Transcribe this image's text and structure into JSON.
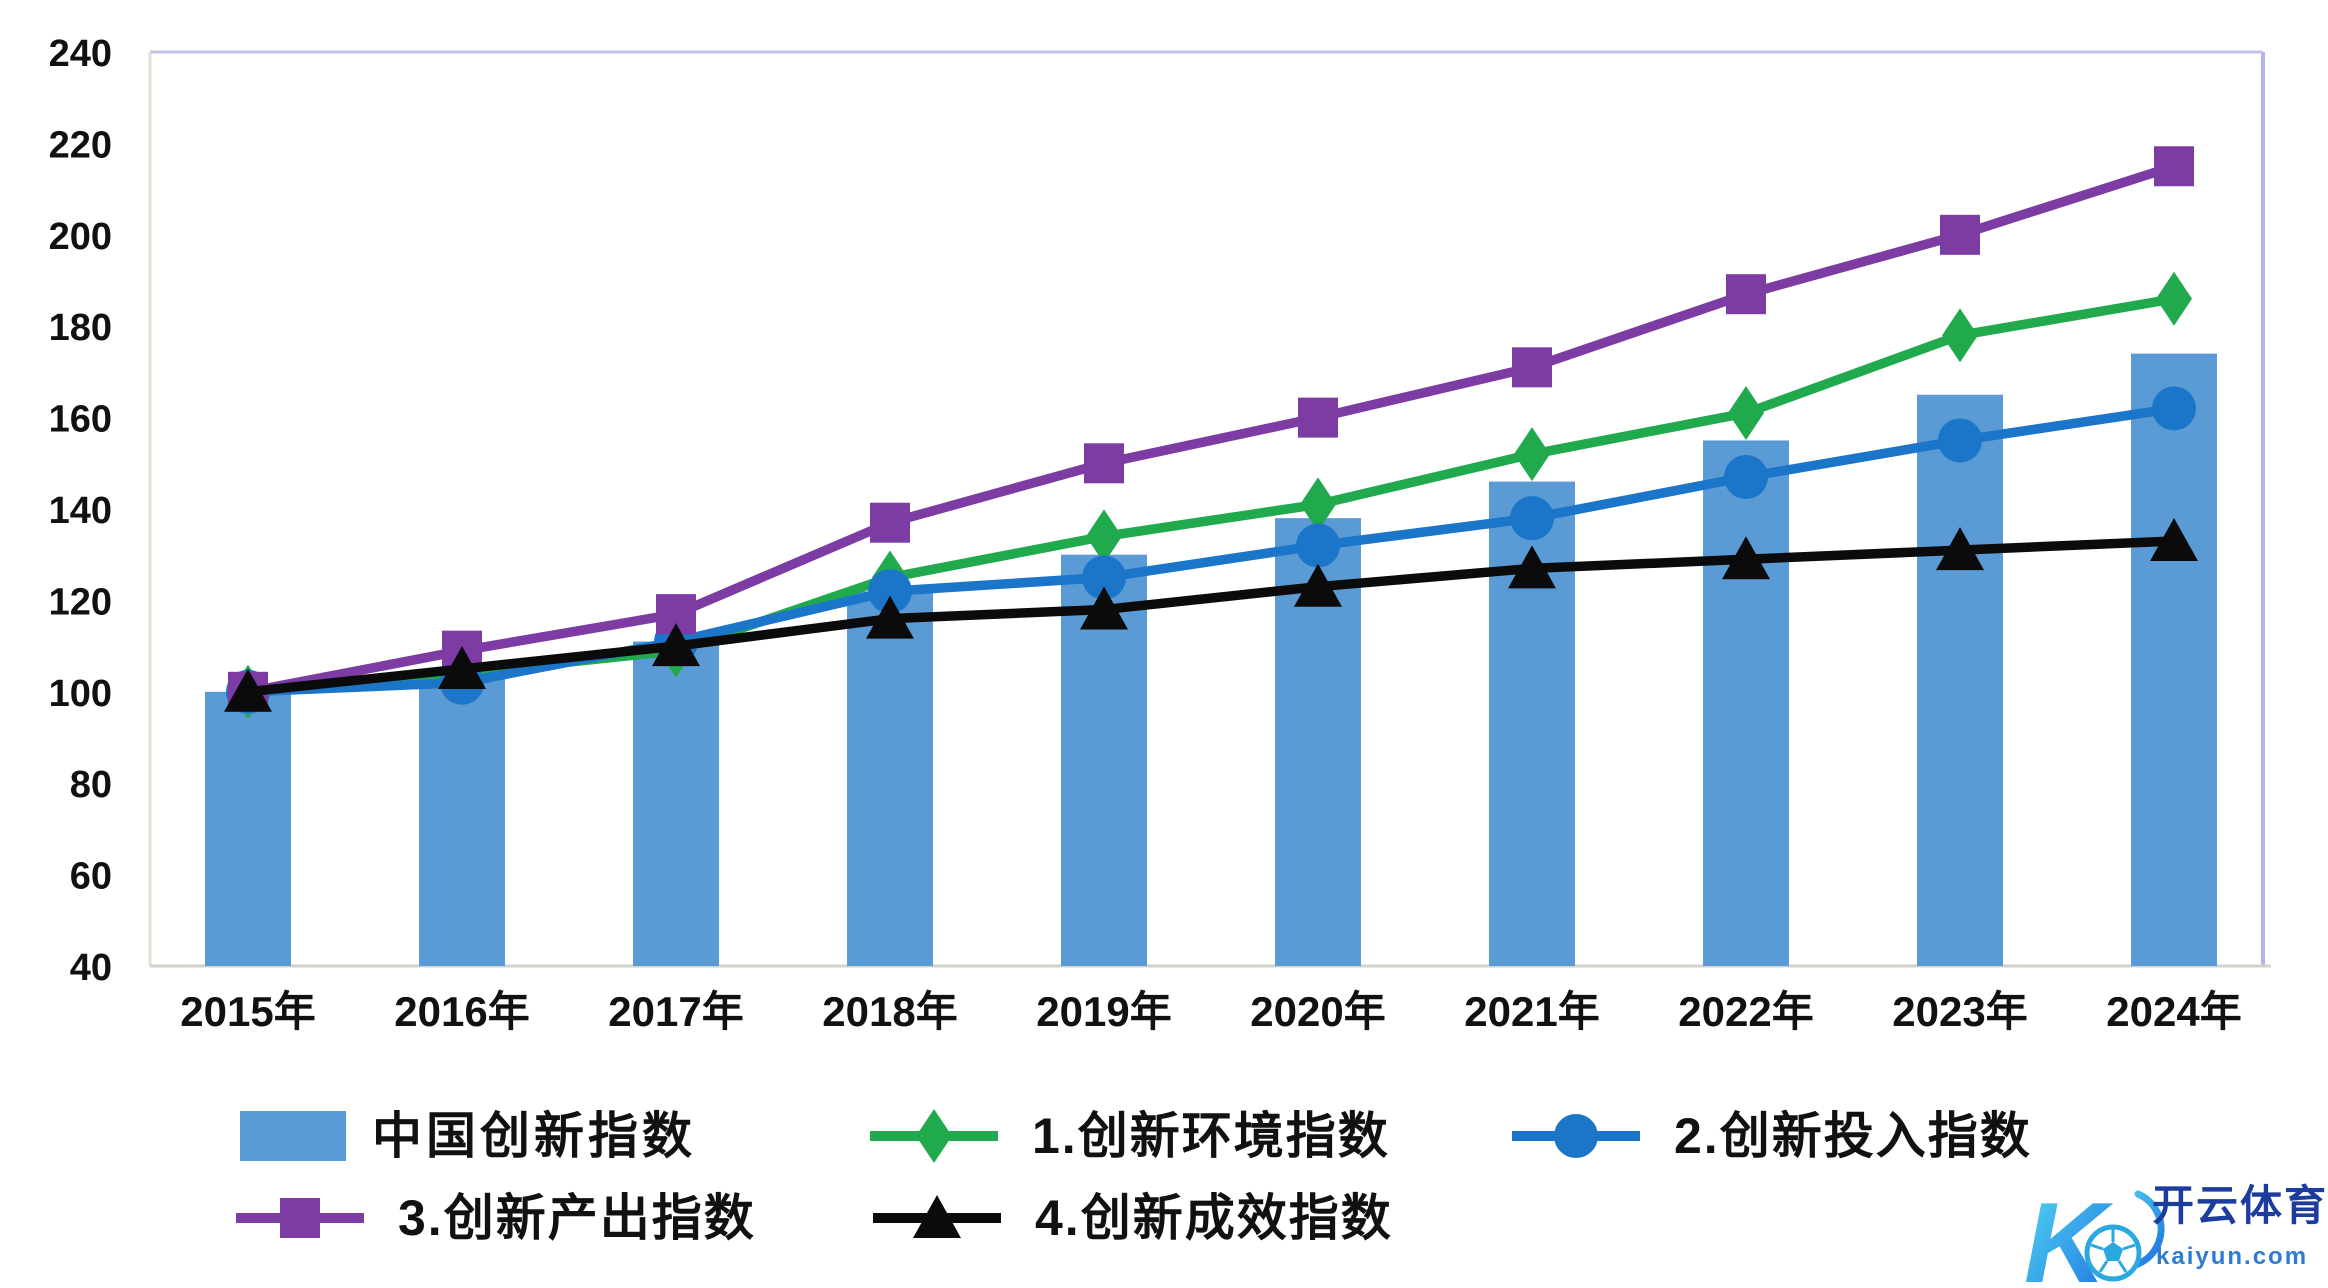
{
  "chart_data": {
    "type": "bar+line combo",
    "title": "",
    "categories": [
      "2015年",
      "2016年",
      "2017年",
      "2018年",
      "2019年",
      "2020年",
      "2021年",
      "2022年",
      "2023年",
      "2024年"
    ],
    "xlabel": "",
    "ylabel": "",
    "ylim": [
      40,
      240
    ],
    "y_axis": {
      "min": 40,
      "max": 240,
      "step": 20,
      "tick_labels": [
        "40",
        "60",
        "80",
        "100",
        "120",
        "140",
        "160",
        "180",
        "200",
        "220",
        "240"
      ]
    },
    "grid": "off",
    "legend_position": "bottom",
    "series": [
      {
        "name": "中国创新指数",
        "type": "bar",
        "marker": "bar",
        "color": "#5B9BD5",
        "values": [
          100,
          103,
          111,
          122,
          130,
          138,
          146,
          155,
          165,
          174
        ]
      },
      {
        "name": "1.创新环境指数",
        "type": "line",
        "marker": "diamond",
        "color": "#21A94D",
        "values": [
          100,
          104,
          109,
          125,
          134,
          141,
          152,
          161,
          178,
          186
        ]
      },
      {
        "name": "2.创新投入指数",
        "type": "line",
        "marker": "circle",
        "color": "#1B75C8",
        "values": [
          100,
          102,
          111,
          122,
          125,
          132,
          138,
          147,
          155,
          162
        ]
      },
      {
        "name": "3.创新产出指数",
        "type": "line",
        "marker": "square",
        "color": "#7D3CA3",
        "values": [
          100,
          109,
          117,
          137,
          150,
          160,
          171,
          187,
          200,
          215
        ]
      },
      {
        "name": "4.创新成效指数",
        "type": "line",
        "marker": "triangle",
        "color": "#0B0B0B",
        "values": [
          100,
          105,
          110,
          116,
          118,
          123,
          127,
          129,
          131,
          133
        ]
      }
    ],
    "axis_text_color": "#111111",
    "plot_border_colors": {
      "top": "#C3C3E8",
      "right": "#B4B4EC",
      "left": "#E2DFD3",
      "bottom": "#D2D1C8"
    }
  },
  "watermark": {
    "logo_letter": "K",
    "brand": "开云体育",
    "domain": "kaiyun.com",
    "brand_color": "#1C3D9E",
    "domain_color": "#2E7BD0",
    "gradient_start": "#52D9F2",
    "gradient_end": "#1E6FE0"
  }
}
